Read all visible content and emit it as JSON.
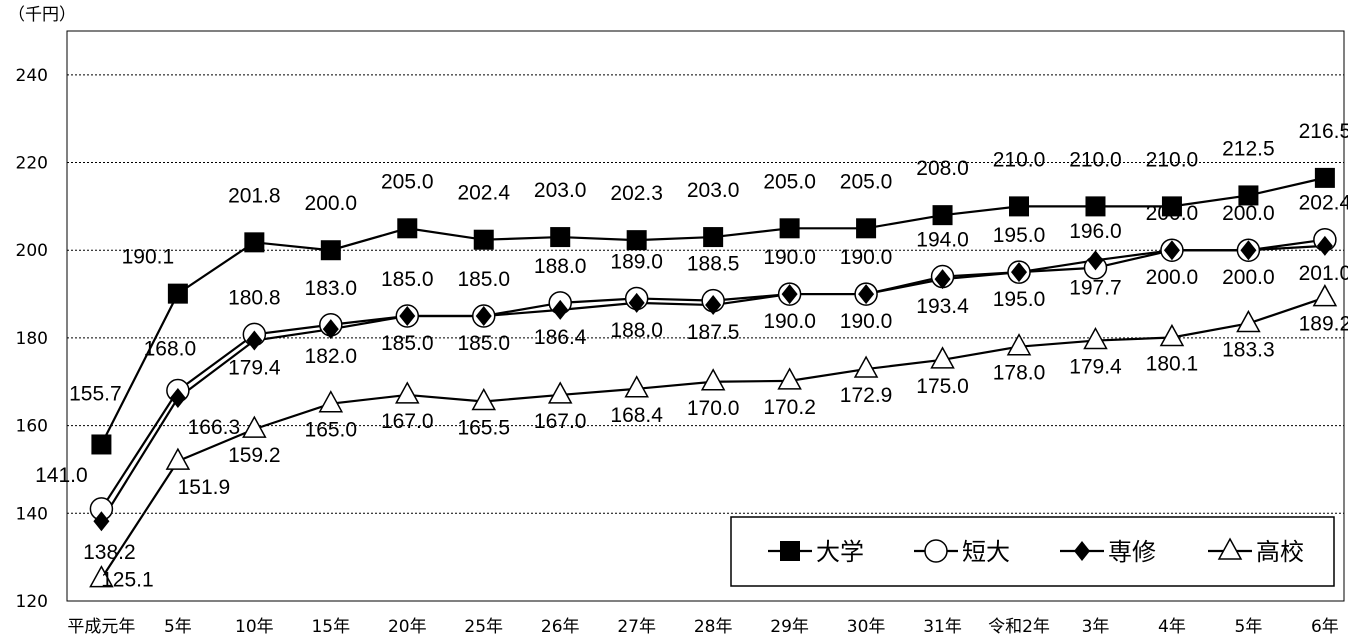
{
  "chart_data": {
    "type": "line",
    "unit_label": "（千円）",
    "categories": [
      "平成元年",
      "5年",
      "10年",
      "15年",
      "20年",
      "25年",
      "26年",
      "27年",
      "28年",
      "29年",
      "30年",
      "31年",
      "令和2年",
      "3年",
      "4年",
      "5年",
      "6年"
    ],
    "ylim": [
      120,
      250
    ],
    "yticks": [
      120,
      140,
      160,
      180,
      200,
      220,
      240
    ],
    "grid": true,
    "legend_position": "bottom-right",
    "series": [
      {
        "name": "大学",
        "marker": "square-filled",
        "values": [
          155.7,
          190.1,
          201.8,
          200.0,
          205.0,
          202.4,
          203.0,
          202.3,
          203.0,
          205.0,
          205.0,
          208.0,
          210.0,
          210.0,
          210.0,
          212.5,
          216.5
        ]
      },
      {
        "name": "短大",
        "marker": "circle-open",
        "values": [
          141.0,
          168.0,
          180.8,
          183.0,
          185.0,
          185.0,
          188.0,
          189.0,
          188.5,
          190.0,
          190.0,
          194.0,
          195.0,
          196.0,
          200.0,
          200.0,
          202.4
        ]
      },
      {
        "name": "専修",
        "marker": "diamond-filled",
        "values": [
          138.2,
          166.3,
          179.4,
          182.0,
          185.0,
          185.0,
          186.4,
          188.0,
          187.5,
          190.0,
          190.0,
          193.4,
          195.0,
          197.7,
          200.0,
          200.0,
          201.0
        ]
      },
      {
        "name": "高校",
        "marker": "triangle-open",
        "values": [
          125.1,
          151.9,
          159.2,
          165.0,
          167.0,
          165.5,
          167.0,
          168.4,
          170.0,
          170.2,
          172.9,
          175.0,
          178.0,
          179.4,
          180.1,
          183.3,
          189.2
        ]
      }
    ]
  }
}
